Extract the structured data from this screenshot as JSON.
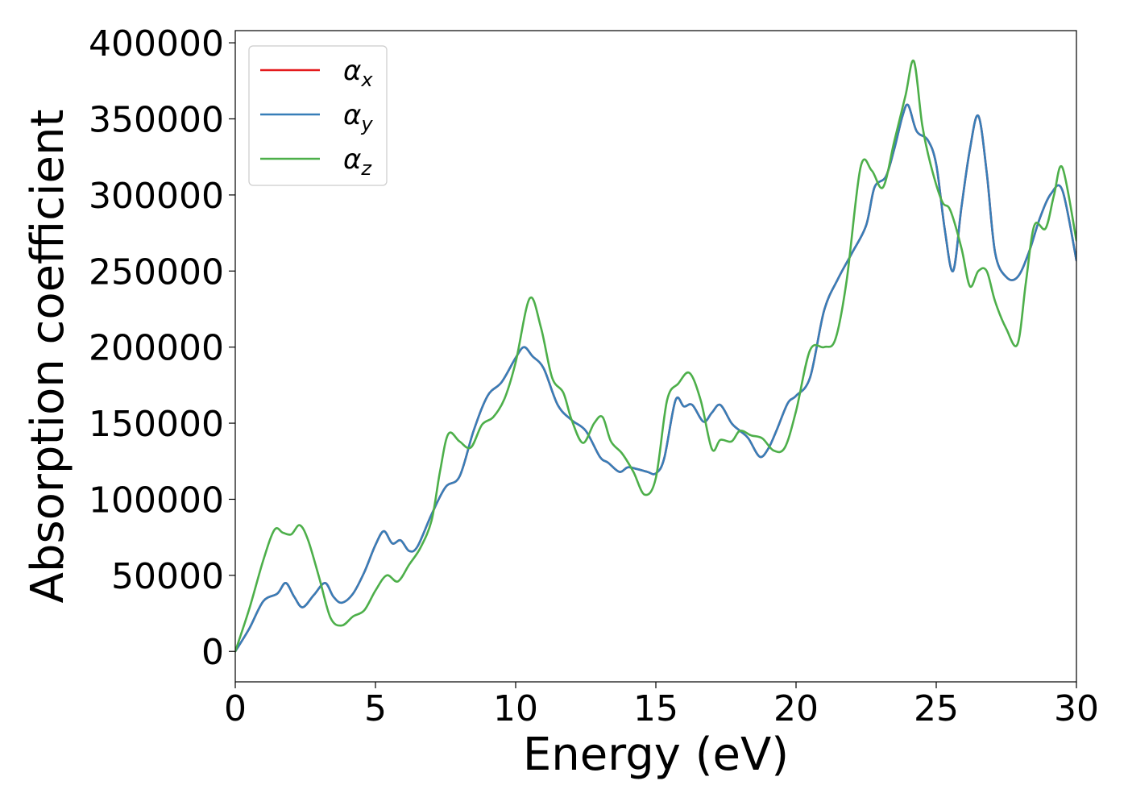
{
  "chart_data": {
    "type": "line",
    "xlabel": "Energy (eV)",
    "ylabel": "Absorption coefficient",
    "xlim": [
      0,
      30
    ],
    "ylim": [
      -20000,
      408000
    ],
    "xticks": [
      0,
      5,
      10,
      15,
      20,
      25,
      30
    ],
    "xtick_labels": [
      "0",
      "5",
      "10",
      "15",
      "20",
      "25",
      "30"
    ],
    "yticks": [
      0,
      50000,
      100000,
      150000,
      200000,
      250000,
      300000,
      350000,
      400000
    ],
    "ytick_labels": [
      "0",
      "50000",
      "100000",
      "150000",
      "200000",
      "250000",
      "300000",
      "350000",
      "400000"
    ],
    "grid": false,
    "legend_position": "top-left",
    "series": [
      {
        "name": "α_x",
        "legend_base": "α",
        "legend_sub": "x",
        "color": "#e41a1c",
        "x": [
          0,
          0.5,
          1,
          1.5,
          1.8,
          2.1,
          2.4,
          2.8,
          3.2,
          3.5,
          3.8,
          4.2,
          4.6,
          5,
          5.3,
          5.6,
          5.9,
          6.2,
          6.5,
          7,
          7.5,
          8,
          8.5,
          9,
          9.5,
          10,
          10.3,
          10.6,
          11,
          11.5,
          12,
          12.5,
          13,
          13.3,
          13.7,
          14,
          14.3,
          14.7,
          15,
          15.3,
          15.7,
          16,
          16.3,
          16.7,
          17,
          17.3,
          17.7,
          18,
          18.3,
          18.7,
          19,
          19.3,
          19.7,
          20,
          20.5,
          21,
          21.5,
          22,
          22.5,
          22.8,
          23.2,
          23.5,
          23.8,
          24,
          24.3,
          24.7,
          25,
          25.3,
          25.6,
          25.9,
          26.2,
          26.5,
          26.8,
          27.1,
          27.5,
          27.9,
          28.3,
          28.7,
          29.1,
          29.5,
          30
        ],
        "y": [
          0,
          15000,
          33000,
          38000,
          45000,
          36000,
          29000,
          37000,
          45000,
          36000,
          32000,
          38000,
          52000,
          70000,
          79000,
          71000,
          73000,
          66000,
          69000,
          90000,
          108000,
          115000,
          145000,
          168000,
          177000,
          193000,
          200000,
          194000,
          186000,
          162000,
          152000,
          145000,
          128000,
          124000,
          118000,
          121000,
          120000,
          118000,
          117000,
          127000,
          165000,
          161000,
          162000,
          151000,
          157000,
          162000,
          150000,
          145000,
          140000,
          128000,
          133000,
          145000,
          163000,
          168000,
          180000,
          224000,
          245000,
          262000,
          280000,
          305000,
          312000,
          330000,
          352000,
          359000,
          342000,
          336000,
          320000,
          278000,
          250000,
          292000,
          330000,
          352000,
          315000,
          262000,
          246000,
          246000,
          262000,
          285000,
          301000,
          303000,
          257000
        ]
      },
      {
        "name": "α_y",
        "legend_base": "α",
        "legend_sub": "y",
        "color": "#377eb8",
        "x": [
          0,
          0.5,
          1,
          1.5,
          1.8,
          2.1,
          2.4,
          2.8,
          3.2,
          3.5,
          3.8,
          4.2,
          4.6,
          5,
          5.3,
          5.6,
          5.9,
          6.2,
          6.5,
          7,
          7.5,
          8,
          8.5,
          9,
          9.5,
          10,
          10.3,
          10.6,
          11,
          11.5,
          12,
          12.5,
          13,
          13.3,
          13.7,
          14,
          14.3,
          14.7,
          15,
          15.3,
          15.7,
          16,
          16.3,
          16.7,
          17,
          17.3,
          17.7,
          18,
          18.3,
          18.7,
          19,
          19.3,
          19.7,
          20,
          20.5,
          21,
          21.5,
          22,
          22.5,
          22.8,
          23.2,
          23.5,
          23.8,
          24,
          24.3,
          24.7,
          25,
          25.3,
          25.6,
          25.9,
          26.2,
          26.5,
          26.8,
          27.1,
          27.5,
          27.9,
          28.3,
          28.7,
          29.1,
          29.5,
          30
        ],
        "y": [
          0,
          15000,
          33000,
          38000,
          45000,
          36000,
          29000,
          37000,
          45000,
          36000,
          32000,
          38000,
          52000,
          70000,
          79000,
          71000,
          73000,
          66000,
          69000,
          90000,
          108000,
          115000,
          145000,
          168000,
          177000,
          193000,
          200000,
          194000,
          186000,
          162000,
          152000,
          145000,
          128000,
          124000,
          118000,
          121000,
          120000,
          118000,
          117000,
          127000,
          165000,
          161000,
          162000,
          151000,
          157000,
          162000,
          150000,
          145000,
          140000,
          128000,
          133000,
          145000,
          163000,
          168000,
          180000,
          224000,
          245000,
          262000,
          280000,
          305000,
          312000,
          330000,
          352000,
          359000,
          342000,
          336000,
          320000,
          278000,
          250000,
          292000,
          330000,
          352000,
          315000,
          262000,
          246000,
          246000,
          262000,
          285000,
          301000,
          303000,
          257000
        ]
      },
      {
        "name": "α_z",
        "legend_base": "α",
        "legend_sub": "z",
        "color": "#4daf4a",
        "x": [
          0,
          0.5,
          1,
          1.4,
          1.7,
          2.0,
          2.3,
          2.6,
          3.0,
          3.4,
          3.8,
          4.2,
          4.6,
          5,
          5.4,
          5.8,
          6.2,
          6.6,
          7,
          7.3,
          7.6,
          8,
          8.4,
          8.8,
          9.2,
          9.6,
          10,
          10.5,
          10.9,
          11.3,
          11.7,
          12,
          12.4,
          12.8,
          13.1,
          13.4,
          13.8,
          14.2,
          14.6,
          15,
          15.4,
          15.8,
          16.2,
          16.6,
          17,
          17.3,
          17.7,
          18,
          18.4,
          18.8,
          19.2,
          19.6,
          20,
          20.5,
          21,
          21.4,
          21.8,
          22.3,
          22.7,
          23.1,
          23.5,
          23.9,
          24.2,
          24.5,
          24.8,
          25.2,
          25.5,
          25.9,
          26.2,
          26.5,
          26.8,
          27.1,
          27.5,
          27.9,
          28.2,
          28.5,
          28.9,
          29.2,
          29.5,
          30
        ],
        "y": [
          0,
          28000,
          60000,
          80000,
          78000,
          77000,
          83000,
          73000,
          48000,
          22000,
          17000,
          23000,
          27000,
          40000,
          50000,
          46000,
          57000,
          68000,
          86000,
          118000,
          143000,
          138000,
          134000,
          149000,
          154000,
          166000,
          190000,
          232000,
          213000,
          180000,
          170000,
          152000,
          137000,
          150000,
          154000,
          138000,
          130000,
          118000,
          103000,
          114000,
          165000,
          176000,
          183000,
          165000,
          133000,
          139000,
          138000,
          145000,
          142000,
          140000,
          132000,
          134000,
          158000,
          198000,
          200000,
          205000,
          243000,
          318000,
          316000,
          305000,
          335000,
          365000,
          388000,
          346000,
          320000,
          296000,
          290000,
          265000,
          240000,
          250000,
          250000,
          230000,
          212000,
          202000,
          243000,
          280000,
          278000,
          300000,
          318000,
          270000
        ]
      }
    ]
  }
}
